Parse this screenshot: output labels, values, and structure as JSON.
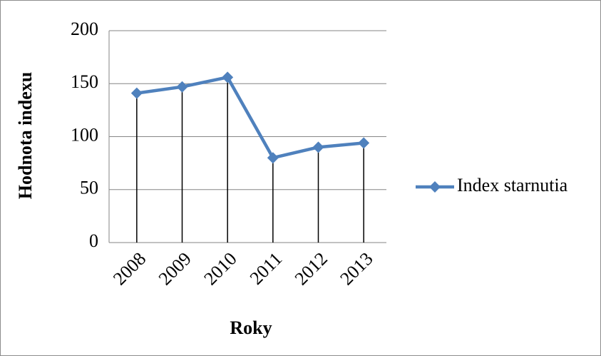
{
  "chart_data": {
    "type": "line",
    "x_label": "Roky",
    "y_label": "Hodnota indexu",
    "categories": [
      "2008",
      "2009",
      "2010",
      "2011",
      "2012",
      "2013"
    ],
    "series": [
      {
        "name": "Index starnutia",
        "color": "#4f81bd",
        "values": [
          141,
          147,
          156,
          80,
          90,
          94
        ]
      }
    ],
    "ylim": [
      0,
      200
    ],
    "yticks": [
      0,
      50,
      100,
      150,
      200
    ],
    "grid": true,
    "drop_lines": true,
    "legend": "right"
  }
}
